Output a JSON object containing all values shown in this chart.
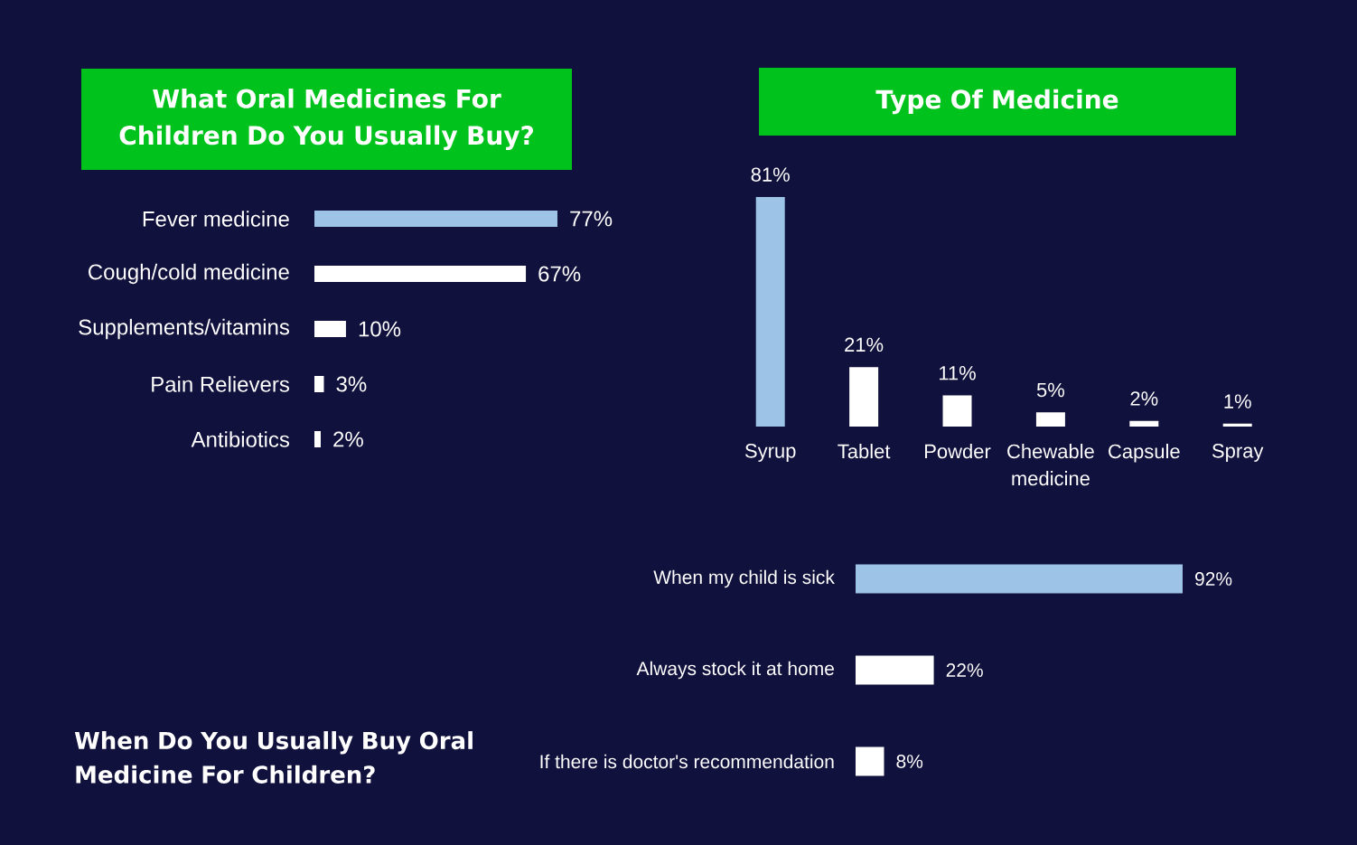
{
  "chart_data": [
    {
      "type": "bar",
      "orientation": "horizontal",
      "title": "What Oral Medicines For Children Do You Usually Buy?",
      "categories": [
        "Fever medicine",
        "Cough/cold medicine",
        "Supplements/vitamins",
        "Pain Relievers",
        "Antibiotics"
      ],
      "values": [
        77,
        67,
        10,
        3,
        2
      ],
      "value_labels": [
        "77%",
        "67%",
        "10%",
        "3%",
        "2%"
      ],
      "colors": [
        "#9dc3e6",
        "#ffffff",
        "#ffffff",
        "#ffffff",
        "#ffffff"
      ]
    },
    {
      "type": "bar",
      "title": "Type Of Medicine",
      "categories": [
        "Syrup",
        "Tablet",
        "Powder",
        "Chewable medicine",
        "Capsule",
        "Spray"
      ],
      "values": [
        81,
        21,
        11,
        5,
        2,
        1
      ],
      "value_labels": [
        "81%",
        "21%",
        "11%",
        "5%",
        "2%",
        "1%"
      ],
      "colors": [
        "#9dc3e6",
        "#ffffff",
        "#ffffff",
        "#ffffff",
        "#ffffff",
        "#ffffff"
      ]
    },
    {
      "type": "bar",
      "orientation": "horizontal",
      "title": "When Do You Usually Buy Oral Medicine For Children?",
      "categories": [
        "When my child is sick",
        "Always stock it at home",
        "If there is doctor's recommendation"
      ],
      "values": [
        92,
        22,
        8
      ],
      "value_labels": [
        "92%",
        "22%",
        "8%"
      ],
      "colors": [
        "#9dc3e6",
        "#ffffff",
        "#ffffff"
      ]
    }
  ]
}
